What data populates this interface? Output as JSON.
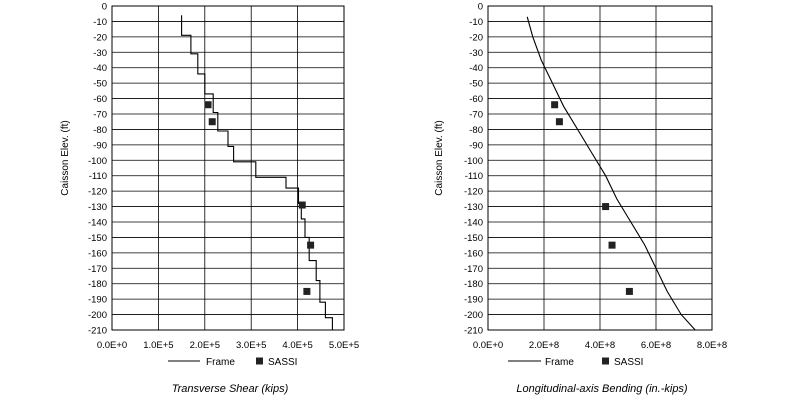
{
  "chart_data": [
    {
      "type": "line",
      "xlabel": "Transverse Shear (kips)",
      "ylabel": "Caisson Elev. (ft)",
      "xlim": [
        0,
        500000
      ],
      "ylim": [
        -210,
        0
      ],
      "x_ticks": [
        0,
        100000,
        200000,
        300000,
        400000,
        500000
      ],
      "x_tick_labels": [
        "0.0E+0",
        "1.0E+5",
        "2.0E+5",
        "3.0E+5",
        "4.0E+5",
        "5.0E+5"
      ],
      "y_ticks": [
        0,
        -10,
        -20,
        -30,
        -40,
        -50,
        -60,
        -70,
        -80,
        -90,
        -100,
        -110,
        -120,
        -130,
        -140,
        -150,
        -160,
        -170,
        -180,
        -190,
        -200,
        -210
      ],
      "y_tick_labels": [
        "0",
        "-10",
        "-20",
        "-30",
        "-40",
        "-50",
        "-60",
        "-70",
        "-80",
        "-90",
        "-100",
        "-110",
        "-120",
        "-130",
        "-140",
        "-150",
        "-160",
        "-170",
        "-180",
        "-190",
        "-200",
        "-210"
      ],
      "grid": true,
      "legend_position": "bottom",
      "series": [
        {
          "name": "Frame",
          "style": "step-line",
          "color": "#000000",
          "points": [
            [
              150000,
              -6
            ],
            [
              150000,
              -19
            ],
            [
              170000,
              -19
            ],
            [
              170000,
              -31
            ],
            [
              185000,
              -31
            ],
            [
              185000,
              -44
            ],
            [
              200000,
              -44
            ],
            [
              200000,
              -57
            ],
            [
              218000,
              -57
            ],
            [
              218000,
              -69
            ],
            [
              228000,
              -69
            ],
            [
              228000,
              -81
            ],
            [
              250000,
              -81
            ],
            [
              250000,
              -91
            ],
            [
              262000,
              -91
            ],
            [
              262000,
              -101
            ],
            [
              310000,
              -101
            ],
            [
              310000,
              -111
            ],
            [
              375000,
              -111
            ],
            [
              375000,
              -118
            ],
            [
              402000,
              -118
            ],
            [
              402000,
              -128
            ],
            [
              408000,
              -128
            ],
            [
              408000,
              -138
            ],
            [
              416000,
              -138
            ],
            [
              416000,
              -150
            ],
            [
              425000,
              -150
            ],
            [
              425000,
              -165
            ],
            [
              440000,
              -165
            ],
            [
              440000,
              -178
            ],
            [
              448000,
              -178
            ],
            [
              448000,
              -192
            ],
            [
              460000,
              -192
            ],
            [
              460000,
              -202
            ],
            [
              475000,
              -202
            ],
            [
              475000,
              -210
            ]
          ]
        },
        {
          "name": "SASSI",
          "style": "marker-square",
          "color": "#222222",
          "points": [
            [
              207000,
              -64
            ],
            [
              216000,
              -75
            ],
            [
              410000,
              -129
            ],
            [
              428000,
              -155
            ],
            [
              420000,
              -185
            ]
          ]
        }
      ]
    },
    {
      "type": "line",
      "xlabel": "Longitudinal-axis Bending (in.-kips)",
      "ylabel": "Caisson Elev. (ft)",
      "xlim": [
        0,
        800000000
      ],
      "ylim": [
        -210,
        0
      ],
      "x_ticks": [
        0,
        200000000,
        400000000,
        600000000,
        800000000
      ],
      "x_tick_labels": [
        "0.0E+0",
        "2.0E+8",
        "4.0E+8",
        "6.0E+8",
        "8.0E+8"
      ],
      "y_ticks": [
        0,
        -10,
        -20,
        -30,
        -40,
        -50,
        -60,
        -70,
        -80,
        -90,
        -100,
        -110,
        -120,
        -130,
        -140,
        -150,
        -160,
        -170,
        -180,
        -190,
        -200,
        -210
      ],
      "y_tick_labels": [
        "0",
        "-10",
        "-20",
        "-30",
        "-40",
        "-50",
        "-60",
        "-70",
        "-80",
        "-90",
        "-100",
        "-110",
        "-120",
        "-130",
        "-140",
        "-150",
        "-160",
        "-170",
        "-180",
        "-190",
        "-200",
        "-210"
      ],
      "grid": true,
      "legend_position": "bottom",
      "series": [
        {
          "name": "Frame",
          "style": "line",
          "color": "#000000",
          "points": [
            [
              140000000,
              -7
            ],
            [
              160000000,
              -20
            ],
            [
              190000000,
              -35
            ],
            [
              230000000,
              -50
            ],
            [
              270000000,
              -65
            ],
            [
              320000000,
              -80
            ],
            [
              370000000,
              -95
            ],
            [
              420000000,
              -110
            ],
            [
              460000000,
              -125
            ],
            [
              510000000,
              -140
            ],
            [
              560000000,
              -155
            ],
            [
              600000000,
              -170
            ],
            [
              640000000,
              -185
            ],
            [
              690000000,
              -200
            ],
            [
              740000000,
              -210
            ]
          ]
        },
        {
          "name": "SASSI",
          "style": "marker-square",
          "color": "#222222",
          "points": [
            [
              238000000,
              -64
            ],
            [
              255000000,
              -75
            ],
            [
              420000000,
              -130
            ],
            [
              443000000,
              -155
            ],
            [
              505000000,
              -185
            ]
          ]
        }
      ]
    }
  ]
}
